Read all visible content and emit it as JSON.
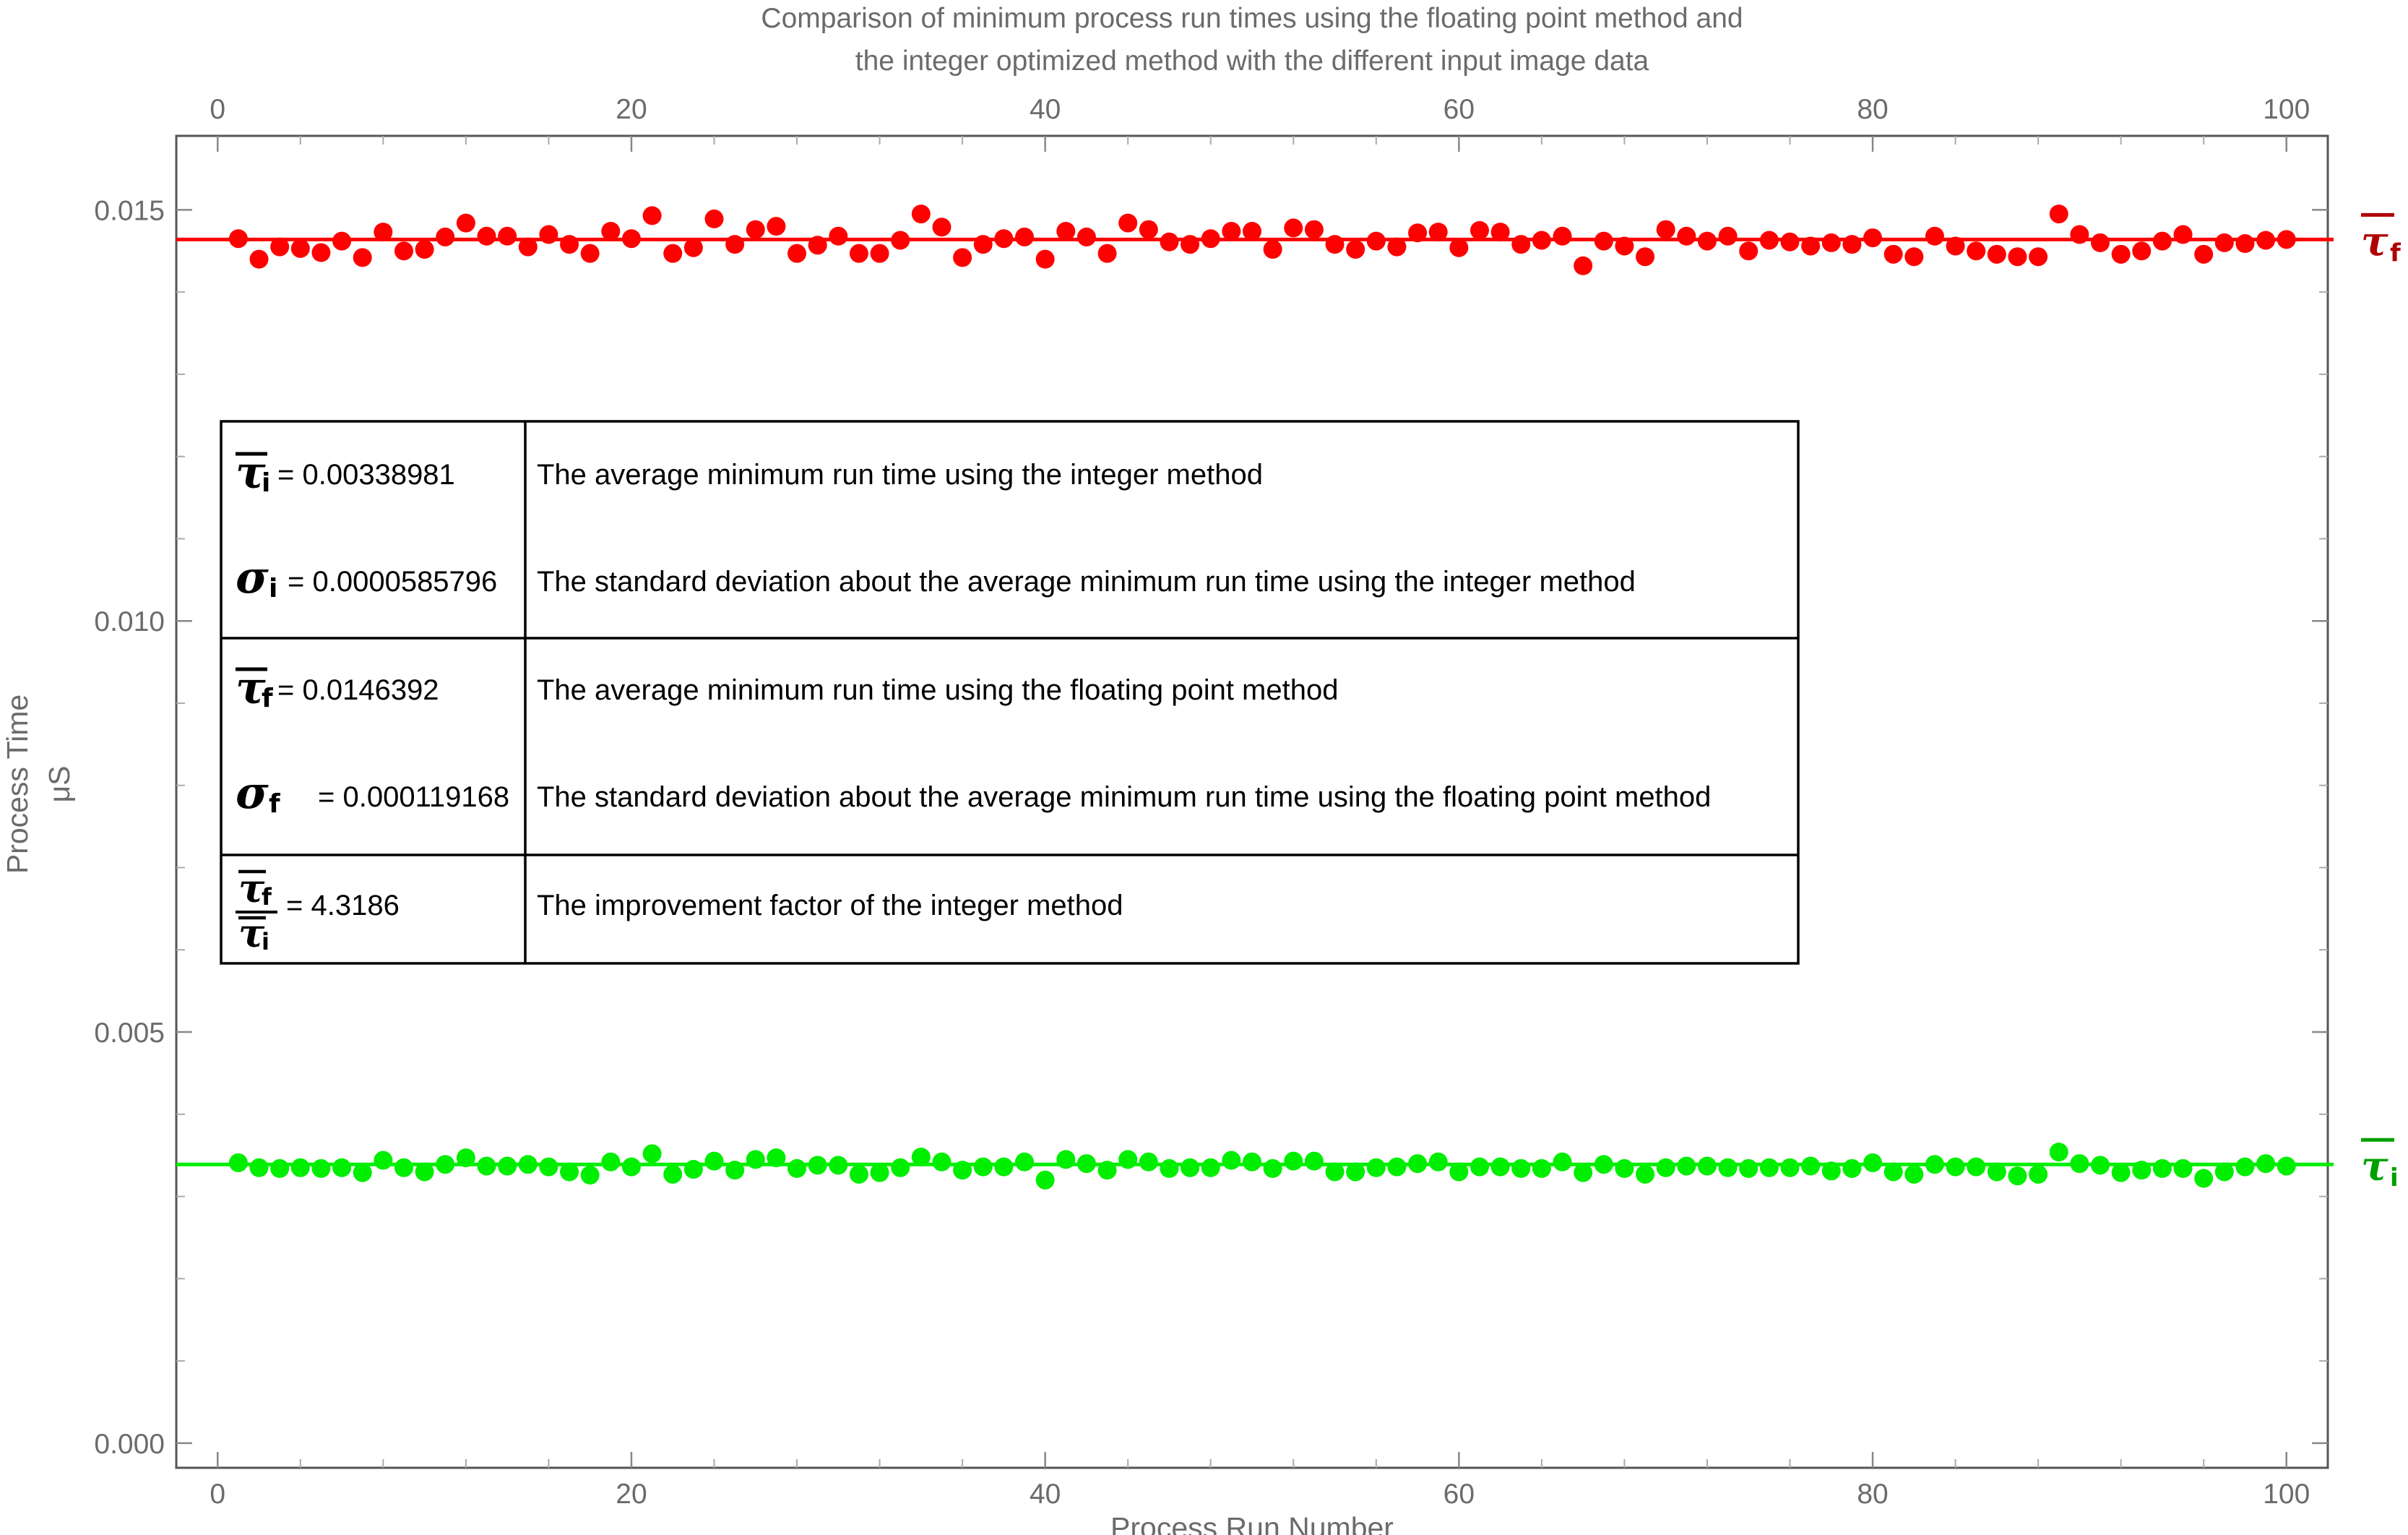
{
  "chart_data": {
    "type": "scatter",
    "title_lines": [
      "Comparison of minimum process run times using the floating point method and",
      "the integer optimized method with the different input image data"
    ],
    "xlabel": "Process Run Number",
    "ylabel_lines": [
      "Process Time",
      "μS"
    ],
    "xlim": [
      -2,
      102
    ],
    "ylim": [
      -0.0003,
      0.0159
    ],
    "x_ticks": [
      0,
      20,
      40,
      60,
      80,
      100
    ],
    "x_tick_labels": [
      "0",
      "20",
      "40",
      "60",
      "80",
      "100"
    ],
    "y_ticks": [
      0.0,
      0.005,
      0.01,
      0.015
    ],
    "y_tick_labels": [
      "0.000",
      "0.005",
      "0.010",
      "0.015"
    ],
    "grid": false,
    "series": [
      {
        "color": "#ff0000",
        "mean": 0.0146392,
        "mean_line_label": "τ̄f",
        "mean_line_color": "#ff0000",
        "mean_label_color": "#b00000",
        "x": [
          1,
          2,
          3,
          4,
          5,
          6,
          7,
          8,
          9,
          10,
          11,
          12,
          13,
          14,
          15,
          16,
          17,
          18,
          19,
          20,
          21,
          22,
          23,
          24,
          25,
          26,
          27,
          28,
          29,
          30,
          31,
          32,
          33,
          34,
          35,
          36,
          37,
          38,
          39,
          40,
          41,
          42,
          43,
          44,
          45,
          46,
          47,
          48,
          49,
          50,
          51,
          52,
          53,
          54,
          55,
          56,
          57,
          58,
          59,
          60,
          61,
          62,
          63,
          64,
          65,
          66,
          67,
          68,
          69,
          70,
          71,
          72,
          73,
          74,
          75,
          76,
          77,
          78,
          79,
          80,
          81,
          82,
          83,
          84,
          85,
          86,
          87,
          88,
          89,
          90,
          91,
          92,
          93,
          94,
          95,
          96,
          97,
          98,
          99,
          100
        ],
        "y": [
          0.01465,
          0.0144,
          0.01455,
          0.01453,
          0.01448,
          0.01462,
          0.01442,
          0.01473,
          0.0145,
          0.01452,
          0.01467,
          0.01484,
          0.01468,
          0.01468,
          0.01455,
          0.0147,
          0.01458,
          0.01447,
          0.01474,
          0.01465,
          0.01493,
          0.01447,
          0.01454,
          0.01489,
          0.01458,
          0.01476,
          0.0148,
          0.01447,
          0.01457,
          0.01468,
          0.01447,
          0.01447,
          0.01463,
          0.01495,
          0.01479,
          0.01442,
          0.01458,
          0.01465,
          0.01467,
          0.0144,
          0.01474,
          0.01467,
          0.01447,
          0.01484,
          0.01476,
          0.01461,
          0.01458,
          0.01465,
          0.01474,
          0.01474,
          0.01452,
          0.01478,
          0.01476,
          0.01458,
          0.01452,
          0.01462,
          0.01455,
          0.01472,
          0.01473,
          0.01454,
          0.01475,
          0.01473,
          0.01458,
          0.01463,
          0.01468,
          0.01432,
          0.01462,
          0.01456,
          0.01443,
          0.01476,
          0.01468,
          0.01462,
          0.01468,
          0.0145,
          0.01463,
          0.01461,
          0.01456,
          0.0146,
          0.01458,
          0.01466,
          0.01446,
          0.01443,
          0.01468,
          0.01456,
          0.0145,
          0.01446,
          0.01443,
          0.01443,
          0.01495,
          0.0147,
          0.0146,
          0.01446,
          0.0145,
          0.01462,
          0.0147,
          0.01446,
          0.0146,
          0.01459,
          0.01463,
          0.01464
        ]
      },
      {
        "color": "#00ee00",
        "mean": 0.00338981,
        "mean_line_label": "τ̄i",
        "mean_line_color": "#00ee00",
        "mean_label_color": "#00a000",
        "x": [
          1,
          2,
          3,
          4,
          5,
          6,
          7,
          8,
          9,
          10,
          11,
          12,
          13,
          14,
          15,
          16,
          17,
          18,
          19,
          20,
          21,
          22,
          23,
          24,
          25,
          26,
          27,
          28,
          29,
          30,
          31,
          32,
          33,
          34,
          35,
          36,
          37,
          38,
          39,
          40,
          41,
          42,
          43,
          44,
          45,
          46,
          47,
          48,
          49,
          50,
          51,
          52,
          53,
          54,
          55,
          56,
          57,
          58,
          59,
          60,
          61,
          62,
          63,
          64,
          65,
          66,
          67,
          68,
          69,
          70,
          71,
          72,
          73,
          74,
          75,
          76,
          77,
          78,
          79,
          80,
          81,
          82,
          83,
          84,
          85,
          86,
          87,
          88,
          89,
          90,
          91,
          92,
          93,
          94,
          95,
          96,
          97,
          98,
          99,
          100
        ],
        "y": [
          0.00341,
          0.00335,
          0.00334,
          0.00335,
          0.00334,
          0.00335,
          0.00329,
          0.00344,
          0.00335,
          0.0033,
          0.00339,
          0.00347,
          0.00337,
          0.00337,
          0.00339,
          0.00336,
          0.0033,
          0.00326,
          0.00342,
          0.00336,
          0.00352,
          0.00327,
          0.00333,
          0.00343,
          0.00332,
          0.00345,
          0.00347,
          0.00334,
          0.00338,
          0.00338,
          0.00327,
          0.00329,
          0.00335,
          0.00348,
          0.00342,
          0.00332,
          0.00336,
          0.00336,
          0.00342,
          0.0032,
          0.00345,
          0.0034,
          0.00332,
          0.00345,
          0.00342,
          0.00334,
          0.00335,
          0.00335,
          0.00344,
          0.00342,
          0.00334,
          0.00343,
          0.00343,
          0.0033,
          0.0033,
          0.00335,
          0.00336,
          0.0034,
          0.00342,
          0.0033,
          0.00336,
          0.00336,
          0.00334,
          0.00334,
          0.00342,
          0.00329,
          0.00339,
          0.00334,
          0.00327,
          0.00335,
          0.00337,
          0.00337,
          0.00335,
          0.00334,
          0.00335,
          0.00335,
          0.00337,
          0.00331,
          0.00334,
          0.00341,
          0.0033,
          0.00327,
          0.00339,
          0.00336,
          0.00336,
          0.0033,
          0.00325,
          0.00327,
          0.00354,
          0.0034,
          0.00338,
          0.00329,
          0.00332,
          0.00334,
          0.00334,
          0.00322,
          0.0033,
          0.00336,
          0.0034,
          0.00337
        ]
      }
    ],
    "legend": {
      "placement": "left-center",
      "rows": [
        {
          "symbol": "τ̄",
          "subscript": "i",
          "value": "= 0.00338981",
          "description": "The average minimum run time using the integer method"
        },
        {
          "symbol": "σ",
          "subscript": "i",
          "value": "= 0.0000585796",
          "description": "The standard deviation about the average minimum run time using the integer method"
        },
        {
          "symbol": "τ̄",
          "subscript": "f",
          "value": "= 0.0146392",
          "description": "The average minimum run time using the floating point method"
        },
        {
          "symbol": "σ",
          "subscript": "f",
          "value": "= 0.000119168",
          "description": "The standard deviation about the average minimum run time using the floating point method"
        },
        {
          "symbol": "τ̄f / τ̄i",
          "subscript": "",
          "value": "= 4.3186",
          "description": "The improvement factor of the integer method"
        }
      ]
    }
  }
}
